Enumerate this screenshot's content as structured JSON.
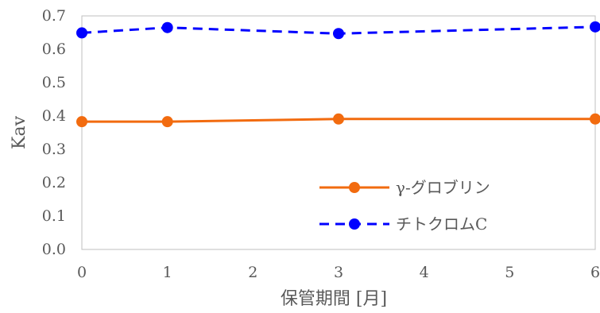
{
  "chart_data": {
    "type": "line",
    "title": "",
    "xlabel": "保管期間 [月]",
    "ylabel": "Kav",
    "xlim": [
      0,
      6
    ],
    "ylim": [
      0,
      0.7
    ],
    "x_ticks": [
      "0",
      "1",
      "2",
      "3",
      "4",
      "5",
      "6"
    ],
    "y_ticks": [
      "0.0",
      "0.1",
      "0.2",
      "0.3",
      "0.4",
      "0.5",
      "0.6",
      "0.7"
    ],
    "grid": false,
    "legend_position": "bottom-right",
    "series": [
      {
        "name": "γ-グロブリン",
        "color": "#F26B0F",
        "line_style": "solid",
        "x": [
          0,
          1,
          3,
          6
        ],
        "y": [
          0.383,
          0.383,
          0.391,
          0.391
        ]
      },
      {
        "name": "チトクロムC",
        "color": "#0000FF",
        "line_style": "dashed",
        "x": [
          0,
          1,
          3,
          6
        ],
        "y": [
          0.649,
          0.665,
          0.647,
          0.667
        ]
      }
    ]
  }
}
